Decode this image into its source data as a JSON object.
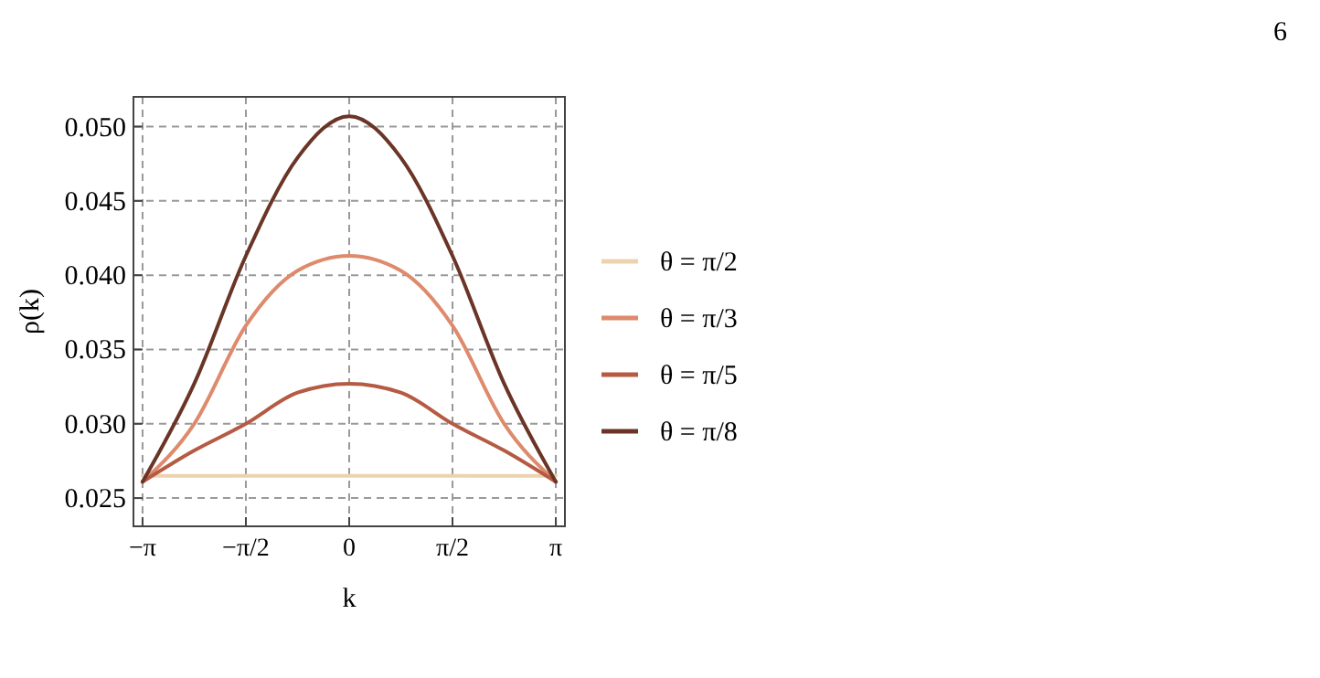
{
  "chart_data": {
    "type": "line",
    "xlabel": "k",
    "ylabel": "ρ(k)",
    "annotations": [
      "6"
    ],
    "xlim": [
      -3.28,
      3.28
    ],
    "ylim": [
      0.0231,
      0.052
    ],
    "xticks": [
      {
        "value": -3.1416,
        "label": "−π"
      },
      {
        "value": -1.5708,
        "label": "−π/2"
      },
      {
        "value": 0,
        "label": "0"
      },
      {
        "value": 1.5708,
        "label": "π/2"
      },
      {
        "value": 3.1416,
        "label": "π"
      }
    ],
    "yticks": [
      {
        "value": 0.025,
        "label": "0.025"
      },
      {
        "value": 0.03,
        "label": "0.030"
      },
      {
        "value": 0.035,
        "label": "0.035"
      },
      {
        "value": 0.04,
        "label": "0.040"
      },
      {
        "value": 0.045,
        "label": "0.045"
      },
      {
        "value": 0.05,
        "label": "0.050"
      }
    ],
    "x": [
      -3.1416,
      -2.3562,
      -1.5708,
      -0.7854,
      0,
      0.7854,
      1.5708,
      2.3562,
      3.1416
    ],
    "grid": true,
    "legend": "right",
    "line_style": "solid",
    "marker": "none",
    "series": [
      {
        "name": "θ = π/2",
        "color": "#ecd3b0",
        "values": [
          0.0265,
          0.0265,
          0.0265,
          0.0265,
          0.0265,
          0.0265,
          0.0265,
          0.0265,
          0.0265
        ]
      },
      {
        "name": "θ = π/3",
        "color": "#de8a6c",
        "values": [
          0.0261,
          0.03,
          0.0366,
          0.0403,
          0.0413,
          0.0403,
          0.0366,
          0.03,
          0.0261
        ]
      },
      {
        "name": "θ = π/5",
        "color": "#b55a43",
        "values": [
          0.0261,
          0.0282,
          0.03,
          0.0321,
          0.0327,
          0.0321,
          0.03,
          0.0282,
          0.0261
        ]
      },
      {
        "name": "θ = π/8",
        "color": "#6a3526",
        "values": [
          0.0261,
          0.0327,
          0.0413,
          0.0479,
          0.0507,
          0.0479,
          0.0413,
          0.0327,
          0.0261
        ]
      }
    ]
  }
}
